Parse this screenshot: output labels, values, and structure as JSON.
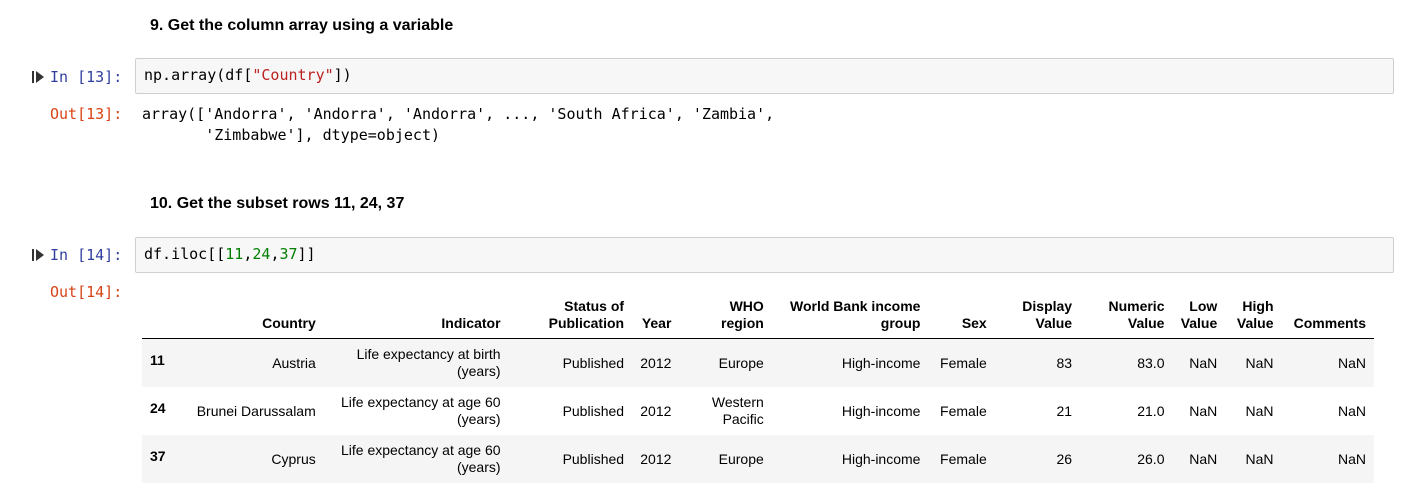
{
  "cell9": {
    "heading": "9. Get the column array using a variable",
    "in_prompt": "In [13]:",
    "out_prompt": "Out[13]:",
    "code": {
      "fn": "np.array(df[",
      "str": "\"Country\"",
      "end": "])"
    },
    "output_line1": "array(['Andorra', 'Andorra', 'Andorra', ..., 'South Africa', 'Zambia',",
    "output_line2": "       'Zimbabwe'], dtype=object)"
  },
  "cell10": {
    "heading": "10. Get the subset rows 11, 24, 37",
    "in_prompt": "In [14]:",
    "out_prompt": "Out[14]:",
    "code": {
      "pre": "df.iloc[[",
      "n1": "11",
      "c1": ",",
      "n2": "24",
      "c2": ",",
      "n3": "37",
      "end": "]]"
    }
  },
  "table": {
    "columns": [
      "",
      "Country",
      "Indicator",
      "Status of Publication",
      "Year",
      "WHO region",
      "World Bank income group",
      "Sex",
      "Display Value",
      "Numeric Value",
      "Low Value",
      "High Value",
      "Comments"
    ],
    "rows": [
      [
        "11",
        "Austria",
        "Life expectancy at birth (years)",
        "Published",
        "2012",
        "Europe",
        "High-income",
        "Female",
        "83",
        "83.0",
        "NaN",
        "NaN",
        "NaN"
      ],
      [
        "24",
        "Brunei Darussalam",
        "Life expectancy at age 60 (years)",
        "Published",
        "2012",
        "Western Pacific",
        "High-income",
        "Female",
        "21",
        "21.0",
        "NaN",
        "NaN",
        "NaN"
      ],
      [
        "37",
        "Cyprus",
        "Life expectancy at age 60 (years)",
        "Published",
        "2012",
        "Europe",
        "High-income",
        "Female",
        "26",
        "26.0",
        "NaN",
        "NaN",
        "NaN"
      ]
    ]
  },
  "icons": {
    "run": "run-cell-icon"
  }
}
